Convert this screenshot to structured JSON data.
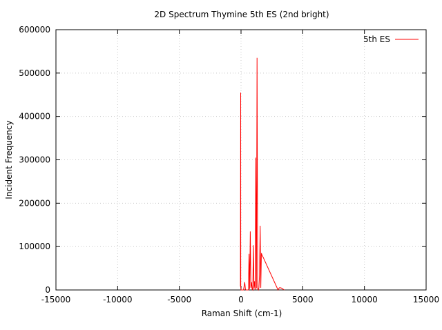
{
  "chart_data": {
    "type": "line",
    "title": "2D Spectrum Thymine 5th ES (2nd bright)",
    "xlabel": "Raman Shift (cm-1)",
    "ylabel": "Incident Frequency",
    "xlim": [
      -15000,
      15000
    ],
    "ylim": [
      0,
      600000
    ],
    "xticks": [
      -15000,
      -10000,
      -5000,
      0,
      5000,
      10000,
      15000
    ],
    "yticks": [
      0,
      100000,
      200000,
      300000,
      400000,
      500000,
      600000
    ],
    "xtick_labels": [
      "-15000",
      "-10000",
      "-5000",
      "0",
      "5000",
      "10000",
      "15000"
    ],
    "ytick_labels": [
      "0",
      "100000",
      "200000",
      "300000",
      "400000",
      "500000",
      "600000"
    ],
    "grid": true,
    "legend_position": "top-right",
    "series": [
      {
        "name": "5th ES",
        "color": "#ff0000",
        "x": [
          -50,
          -30,
          -20,
          0,
          200,
          300,
          350,
          400,
          500,
          600,
          650,
          700,
          750,
          800,
          850,
          900,
          950,
          1000,
          1050,
          1100,
          1150,
          1200,
          1250,
          1300,
          1350,
          1400,
          1450,
          1500,
          1550,
          1600,
          1650,
          1700,
          1750,
          3000,
          3100,
          3200,
          3300,
          3400,
          3500
        ],
        "y": [
          8000,
          455000,
          5000,
          0,
          0,
          18000,
          2000,
          0,
          0,
          0,
          83000,
          2000,
          135000,
          5000,
          18000,
          2000,
          0,
          103000,
          3000,
          20000,
          0,
          305000,
          4000,
          535000,
          3000,
          0,
          5000,
          35000,
          148000,
          5000,
          85000,
          80000,
          78000,
          0,
          5000,
          5000,
          4000,
          2000,
          0
        ]
      }
    ]
  }
}
